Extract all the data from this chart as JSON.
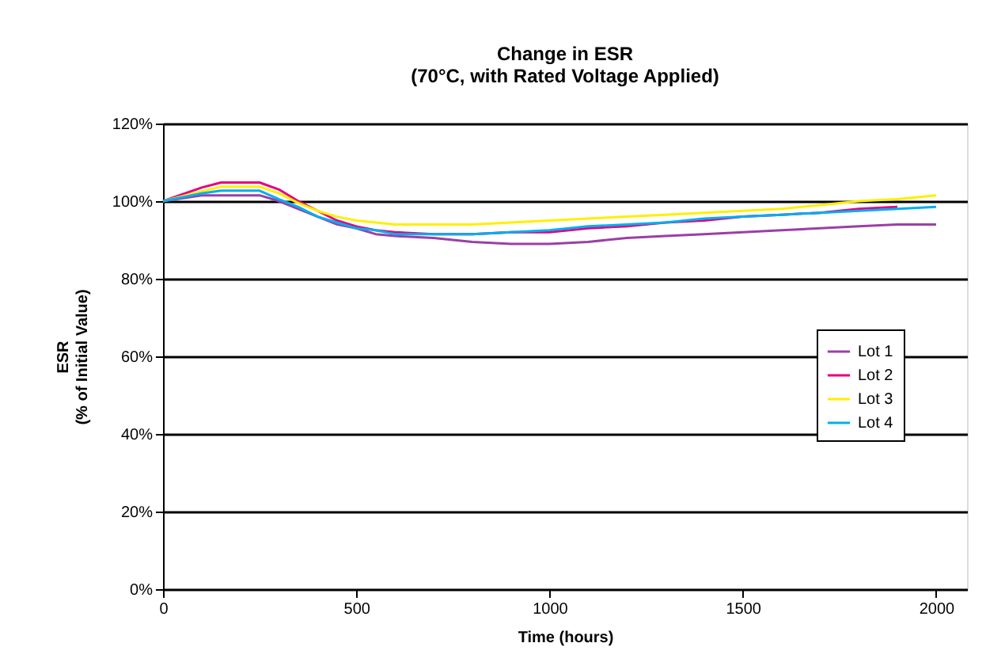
{
  "chart_data": {
    "type": "line",
    "title": "Change in ESR\n(70°C, with Rated Voltage Applied)",
    "xlabel": "Time (hours)",
    "ylabel": "ESR\n(% of Initial Value)",
    "x": [
      0,
      100,
      150,
      250,
      300,
      350,
      400,
      450,
      500,
      550,
      600,
      700,
      800,
      900,
      1000,
      1100,
      1200,
      1300,
      1400,
      1500,
      1600,
      1700,
      1800,
      1900,
      2000
    ],
    "series": [
      {
        "name": "Lot 1",
        "color": "#9b3fa6",
        "values": [
          100,
          101.5,
          101.5,
          101.5,
          100,
          98,
          96,
          94,
          93,
          91.5,
          91,
          90.5,
          89.5,
          89,
          89,
          89.5,
          90.5,
          91,
          91.5,
          92,
          92.5,
          93,
          93.5,
          94,
          94
        ]
      },
      {
        "name": "Lot 2",
        "color": "#e6007e",
        "values": [
          100,
          103.5,
          104.8,
          104.8,
          103,
          100,
          97.5,
          95,
          93.5,
          92.5,
          92,
          91.5,
          91.5,
          92,
          92,
          93,
          93.5,
          94.5,
          95,
          96,
          96.5,
          97,
          98,
          98.5,
          null
        ]
      },
      {
        "name": "Lot 3",
        "color": "#ffef00",
        "values": [
          100,
          102.5,
          103.7,
          103.7,
          102,
          99.5,
          97.5,
          96,
          95,
          94.5,
          94,
          94,
          94,
          94.5,
          95,
          95.5,
          96,
          96.5,
          97,
          97.5,
          98,
          99,
          100,
          100.5,
          101.5
        ]
      },
      {
        "name": "Lot 4",
        "color": "#00aeef",
        "values": [
          100,
          102,
          102.7,
          102.7,
          100.5,
          98.5,
          96,
          94.5,
          93,
          92.5,
          91.5,
          91.5,
          91.5,
          92,
          92.5,
          93.5,
          94,
          94.5,
          95.5,
          96,
          96.5,
          97,
          97.5,
          98,
          98.5
        ]
      }
    ],
    "xlim": [
      0,
      2080
    ],
    "xticks": [
      0,
      500,
      1000,
      1500,
      2000
    ],
    "ylim": [
      0,
      120
    ],
    "yticks": [
      {
        "value": 0,
        "label": "0%"
      },
      {
        "value": 20,
        "label": "20%"
      },
      {
        "value": 40,
        "label": "40%"
      },
      {
        "value": 60,
        "label": "60%"
      },
      {
        "value": 80,
        "label": "80%"
      },
      {
        "value": 100,
        "label": "100%"
      },
      {
        "value": 120,
        "label": "120%"
      }
    ],
    "grid": "y",
    "legend": "right",
    "marker": "none",
    "line_style": "solid"
  }
}
